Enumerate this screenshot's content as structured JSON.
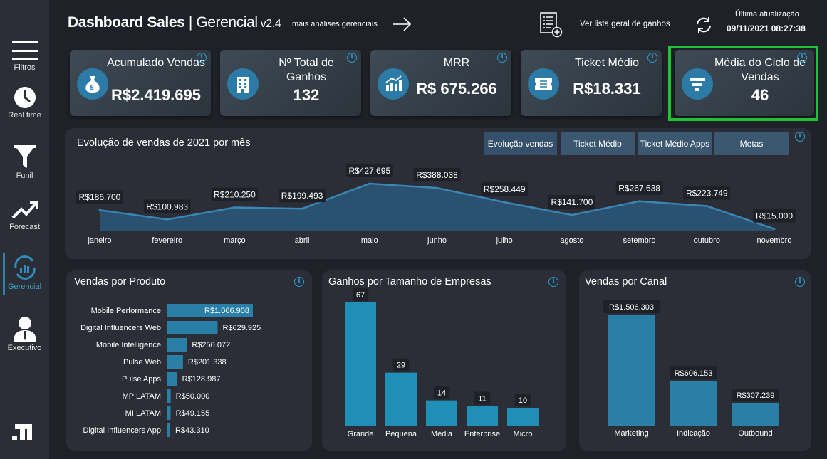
{
  "sidebar": {
    "items": [
      {
        "label": "Filtros",
        "icon": "menu-icon"
      },
      {
        "label": "Real time",
        "icon": "clock-icon"
      },
      {
        "label": "Funil",
        "icon": "funnel-icon"
      },
      {
        "label": "Forecast",
        "icon": "trend-up-icon"
      },
      {
        "label": "Gerencial",
        "icon": "chart-refresh-icon",
        "active": true
      },
      {
        "label": "Executivo",
        "icon": "executive-icon"
      }
    ]
  },
  "header": {
    "title_bold": "Dashboard Sales",
    "title_sep": " | ",
    "title_rest": "Gerencial",
    "version": " v2.4",
    "more_link": "mais análises gerenciais",
    "list_link": "Ver lista geral de ganhos",
    "update_label": "Última atualização",
    "update_value": "09/11/2021 08:27:38"
  },
  "kpis": [
    {
      "title": "Acumulado Vendas",
      "value": "R$2.419.695",
      "icon": "money-bag-icon"
    },
    {
      "title": "Nº Total de Ganhos",
      "value": "132",
      "icon": "building-icon"
    },
    {
      "title": "MRR",
      "value": "R$ 675.266",
      "icon": "bar-growth-icon"
    },
    {
      "title": "Ticket Médio",
      "value": "R$18.331",
      "icon": "ticket-icon"
    },
    {
      "title": "Média do Ciclo de Vendas",
      "value": "46",
      "icon": "funnel-icon"
    }
  ],
  "evolution": {
    "title": "Evolução de vendas de 2021 por mês",
    "tabs": [
      "Evolução vendas",
      "Ticket Médio",
      "Ticket Médio Apps",
      "Metas"
    ]
  },
  "products_title": "Vendas por Produto",
  "companies_title": "Ganhos por Tamanho de Empresas",
  "channels_title": "Vendas por Canal",
  "chart_data": [
    {
      "type": "area",
      "title": "Evolução de vendas de 2021 por mês",
      "categories": [
        "janeiro",
        "fevereiro",
        "março",
        "abril",
        "maio",
        "junho",
        "julho",
        "agosto",
        "setembro",
        "outubro",
        "novembro"
      ],
      "values": [
        186700,
        100983,
        210250,
        199493,
        427695,
        388038,
        258449,
        141700,
        267638,
        223749,
        15000
      ],
      "labels": [
        "R$186.700",
        "R$100.983",
        "R$210.250",
        "R$199.493",
        "R$427.695",
        "R$388.038",
        "R$258.449",
        "R$141.700",
        "R$267.638",
        "R$223.749",
        "R$15.000"
      ],
      "color": "#2a5373",
      "line_color": "#3a86b5"
    },
    {
      "type": "bar",
      "orientation": "horizontal",
      "title": "Vendas por Produto",
      "categories": [
        "Mobile Performance",
        "Digital Influencers Web",
        "Mobile Intelligence",
        "Pulse Web",
        "Pulse Apps",
        "MP LATAM",
        "MI LATAM",
        "Digital Influencers App"
      ],
      "values": [
        1066908,
        629925,
        250072,
        201338,
        128987,
        50000,
        49155,
        43310
      ],
      "labels": [
        "R$1.066.908",
        "R$629.925",
        "R$250.072",
        "R$201.338",
        "R$128.987",
        "R$50.000",
        "R$49.155",
        "R$43.310"
      ],
      "color": "#2a7fa6"
    },
    {
      "type": "bar",
      "title": "Ganhos por Tamanho de Empresas",
      "categories": [
        "Grande",
        "Pequena",
        "Média",
        "Enterprise",
        "Micro"
      ],
      "values": [
        67,
        29,
        14,
        11,
        10
      ],
      "labels": [
        "67",
        "29",
        "14",
        "11",
        "10"
      ],
      "color": "#1f8fb8"
    },
    {
      "type": "bar",
      "title": "Vendas por Canal",
      "categories": [
        "Marketing",
        "Indicação",
        "Outbound"
      ],
      "values": [
        1506303,
        606153,
        307239
      ],
      "labels": [
        "R$1.506.303",
        "R$606.153",
        "R$307.239"
      ],
      "color": "#2a7fa6"
    }
  ]
}
